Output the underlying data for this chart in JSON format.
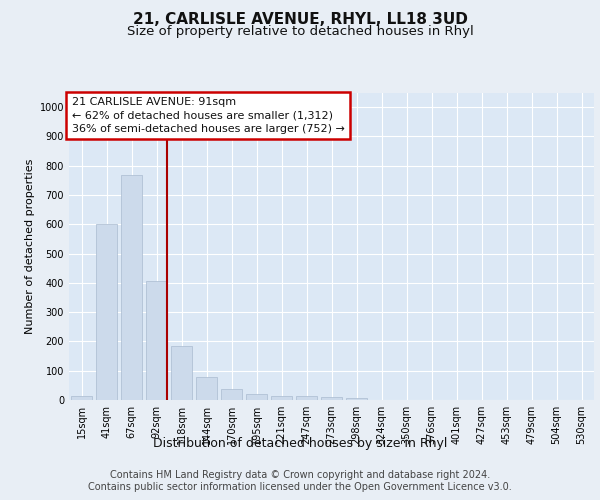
{
  "title1": "21, CARLISLE AVENUE, RHYL, LL18 3UD",
  "title2": "Size of property relative to detached houses in Rhyl",
  "xlabel": "Distribution of detached houses by size in Rhyl",
  "ylabel": "Number of detached properties",
  "footnote": "Contains HM Land Registry data © Crown copyright and database right 2024.\nContains public sector information licensed under the Open Government Licence v3.0.",
  "x_labels": [
    "15sqm",
    "41sqm",
    "67sqm",
    "92sqm",
    "118sqm",
    "144sqm",
    "170sqm",
    "195sqm",
    "221sqm",
    "247sqm",
    "273sqm",
    "298sqm",
    "324sqm",
    "350sqm",
    "376sqm",
    "401sqm",
    "427sqm",
    "453sqm",
    "479sqm",
    "504sqm",
    "530sqm"
  ],
  "bar_heights": [
    15,
    600,
    770,
    405,
    185,
    78,
    38,
    20,
    15,
    13,
    10,
    8,
    0,
    0,
    0,
    0,
    0,
    0,
    0,
    0,
    0
  ],
  "bar_color": "#ccdaeb",
  "bar_edge_color": "#aabbd0",
  "marker_index": 3,
  "marker_color": "#aa0000",
  "ylim": [
    0,
    1050
  ],
  "yticks": [
    0,
    100,
    200,
    300,
    400,
    500,
    600,
    700,
    800,
    900,
    1000
  ],
  "annotation_text": "21 CARLISLE AVENUE: 91sqm\n← 62% of detached houses are smaller (1,312)\n36% of semi-detached houses are larger (752) →",
  "annotation_box_color": "#ffffff",
  "annotation_border_color": "#cc0000",
  "bg_color": "#e8eef5",
  "plot_bg_color": "#dce8f5",
  "grid_color": "#ffffff",
  "title1_fontsize": 11,
  "title2_fontsize": 9.5,
  "axis_label_fontsize": 8,
  "tick_fontsize": 7,
  "annotation_fontsize": 8,
  "xlabel_fontsize": 9,
  "footnote_fontsize": 7
}
